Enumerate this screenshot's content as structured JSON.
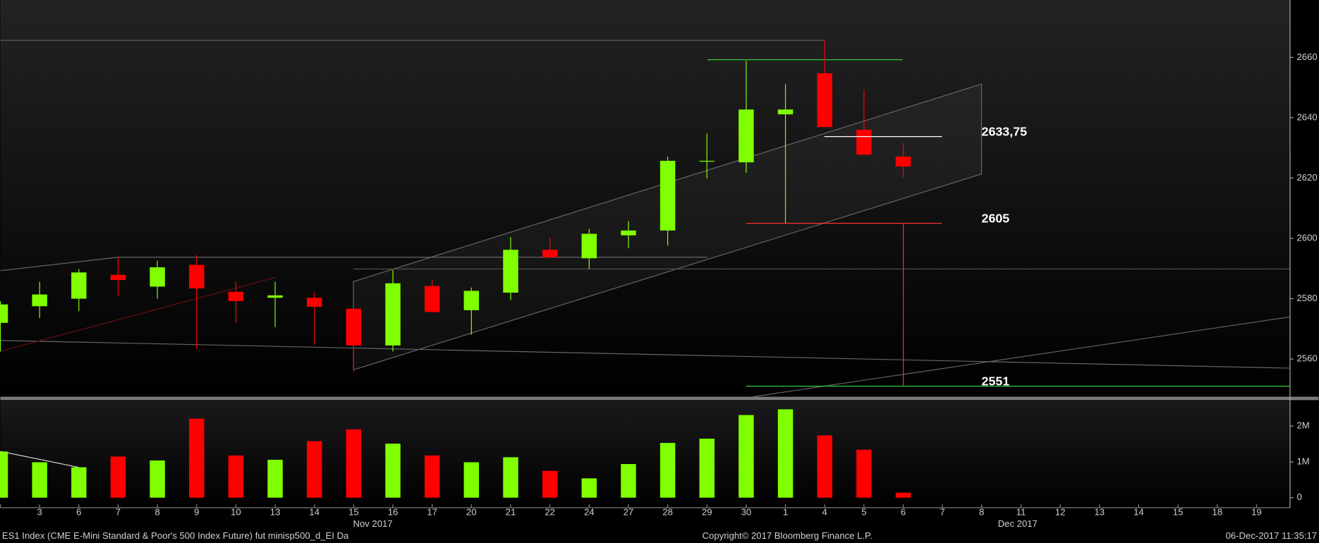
{
  "chart_data": [
    {
      "type": "candlestick",
      "categories": [
        null,
        "3",
        "6",
        "7",
        "8",
        "9",
        "10",
        "13",
        "14",
        "15",
        "16",
        "17",
        "20",
        "21",
        "22",
        "24",
        "27",
        "28",
        "29",
        "30",
        "1",
        "4",
        "5",
        "6",
        "7",
        "8",
        "11",
        "12",
        "13",
        "14",
        "15",
        "18",
        "19"
      ],
      "x_groups": [
        "Nov 2017",
        "Dec 2017"
      ],
      "open": [
        2572,
        2577.5,
        2580,
        2587.9,
        2584,
        2591.2,
        2582.3,
        2580.3,
        2580.3,
        2576.7,
        2564.5,
        2584.2,
        2576.2,
        2582,
        2596.2,
        2593.4,
        2601,
        2602.6,
        2625.7,
        2625.2,
        2641.1,
        2654.7,
        2636,
        2627.1,
        null,
        null,
        null,
        null,
        null,
        null,
        null,
        null,
        null
      ],
      "high": [
        2579.2,
        2585.6,
        2589.8,
        2593.7,
        2592.6,
        2594.5,
        2585.6,
        2585.6,
        2582,
        2576.7,
        2589.5,
        2586.2,
        2583.7,
        2600.4,
        2600.1,
        2603.2,
        2605.7,
        2627.1,
        2634.7,
        2658.9,
        2651.1,
        2665.6,
        2649.1,
        2631.6,
        null,
        null,
        null,
        null,
        null,
        null,
        null,
        null,
        null
      ],
      "low": [
        2562.5,
        2573.6,
        2575.9,
        2580.9,
        2580,
        2563.3,
        2572,
        2570.6,
        2564.7,
        2555.8,
        2562.5,
        2575.3,
        2568.1,
        2579.5,
        2593.7,
        2589.8,
        2596.8,
        2597.6,
        2619.9,
        2621.8,
        2605.1,
        2636.9,
        2627.7,
        2620.2,
        null,
        null,
        null,
        null,
        null,
        null,
        null,
        null,
        null
      ],
      "close": [
        2578.1,
        2581.4,
        2588.7,
        2586.2,
        2590.4,
        2583.4,
        2579.2,
        2581.1,
        2577.3,
        2564.5,
        2585.1,
        2575.6,
        2582.6,
        2596.2,
        2593.7,
        2601.5,
        2602.6,
        2625.7,
        2625.7,
        2642.7,
        2642.7,
        2636.9,
        2627.7,
        2623.8,
        null,
        null,
        null,
        null,
        null,
        null,
        null,
        null,
        null
      ],
      "up_color": "#80ff00",
      "down_color": "#ff0000",
      "ylim": [
        2547.5,
        2679
      ],
      "yticks": [
        2560,
        2580,
        2600,
        2620,
        2640,
        2660
      ],
      "annotations": [
        {
          "value": 2633.75,
          "label": "2633,75"
        },
        {
          "value": 2605,
          "label": "2605"
        },
        {
          "value": 2551,
          "label": "2551"
        }
      ]
    },
    {
      "type": "volume",
      "values": [
        1290000,
        990000,
        850000,
        1150000,
        1040000,
        2210000,
        1180000,
        1060000,
        1580000,
        1910000,
        1510000,
        1180000,
        990000,
        1130000,
        750000,
        540000,
        940000,
        1530000,
        1650000,
        2310000,
        2470000,
        1740000,
        1340000,
        140000,
        null,
        null,
        null,
        null,
        null,
        null,
        null,
        null,
        null
      ],
      "ylim": [
        -280000,
        2680000
      ],
      "yticks": [
        0,
        {
          "value": 1000000,
          "label": "1M"
        },
        {
          "value": 2000000,
          "label": "2M"
        }
      ]
    }
  ],
  "footer": {
    "security": "ES1 Index (CME E-Mini Standard & Poor's 500 Index Future) fut minisp500_d_EI  Da",
    "copyright": "Copyright© 2017 Bloomberg Finance L.P.",
    "timestamp": "06-Dec-2017 11:35:17"
  }
}
